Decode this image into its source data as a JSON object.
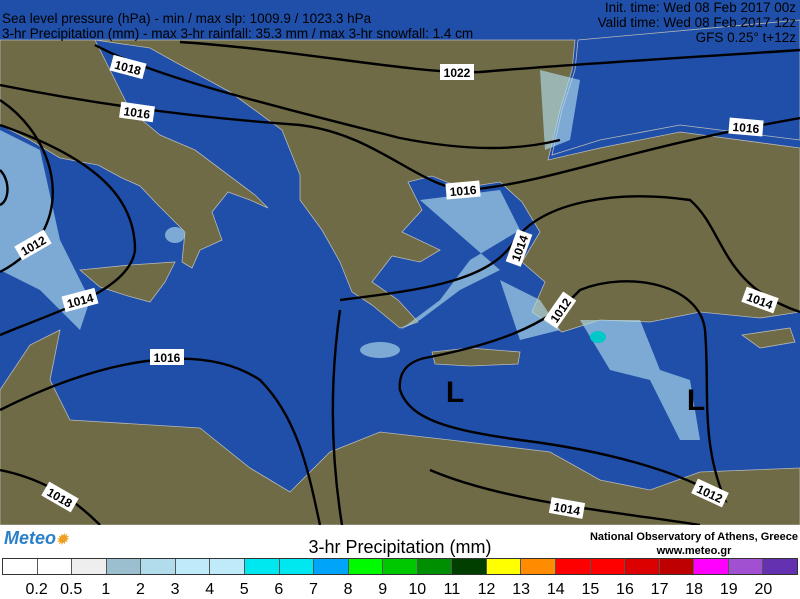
{
  "header": {
    "line1": "Sea level pressure (hPa) - min / max slp: 1009.9 / 1023.3 hPa",
    "line2": "3-hr Precipitation (mm)  - max 3-hr rainfall: 35.3 mm / max 3-hr snowfall: 1.4 cm",
    "init_time": "Init. time: Wed 08 Feb 2017 00z",
    "valid_time": "Valid time: Wed 08 Feb 2017 12z",
    "model": "GFS 0.25° t+12z"
  },
  "map": {
    "sea_color": "#1f4fa8",
    "land_color": "#6f6b47",
    "isobar_labels": [
      "1018",
      "1016",
      "1022",
      "1016",
      "1016",
      "1012",
      "1014",
      "1014",
      "1012",
      "1014",
      "1016",
      "1018",
      "1014",
      "1012"
    ],
    "lows": [
      "L",
      "L"
    ]
  },
  "footer": {
    "logo": "Meteo",
    "title": "3-hr Precipitation (mm)",
    "org": "National Observatory of Athens, Greece",
    "site": "www.meteo.gr",
    "colorbar_colors": [
      "#ffffff",
      "#ffffff",
      "#eeeeee",
      "#9bbfcf",
      "#b0dcec",
      "#bfeafa",
      "#bfeafa",
      "#00e8ef",
      "#00e8ef",
      "#00a4f8",
      "#00fa00",
      "#00c800",
      "#008f00",
      "#003f00",
      "#ffff00",
      "#ff8c00",
      "#ff0000",
      "#ff0000",
      "#dc0000",
      "#be0000",
      "#ff00ff",
      "#a050d0",
      "#6432b0"
    ],
    "tick_labels": [
      "0.2",
      "0.5",
      "1",
      "2",
      "3",
      "4",
      "5",
      "6",
      "7",
      "8",
      "9",
      "10",
      "11",
      "12",
      "13",
      "14",
      "15",
      "16",
      "17",
      "18",
      "19",
      "20"
    ]
  }
}
